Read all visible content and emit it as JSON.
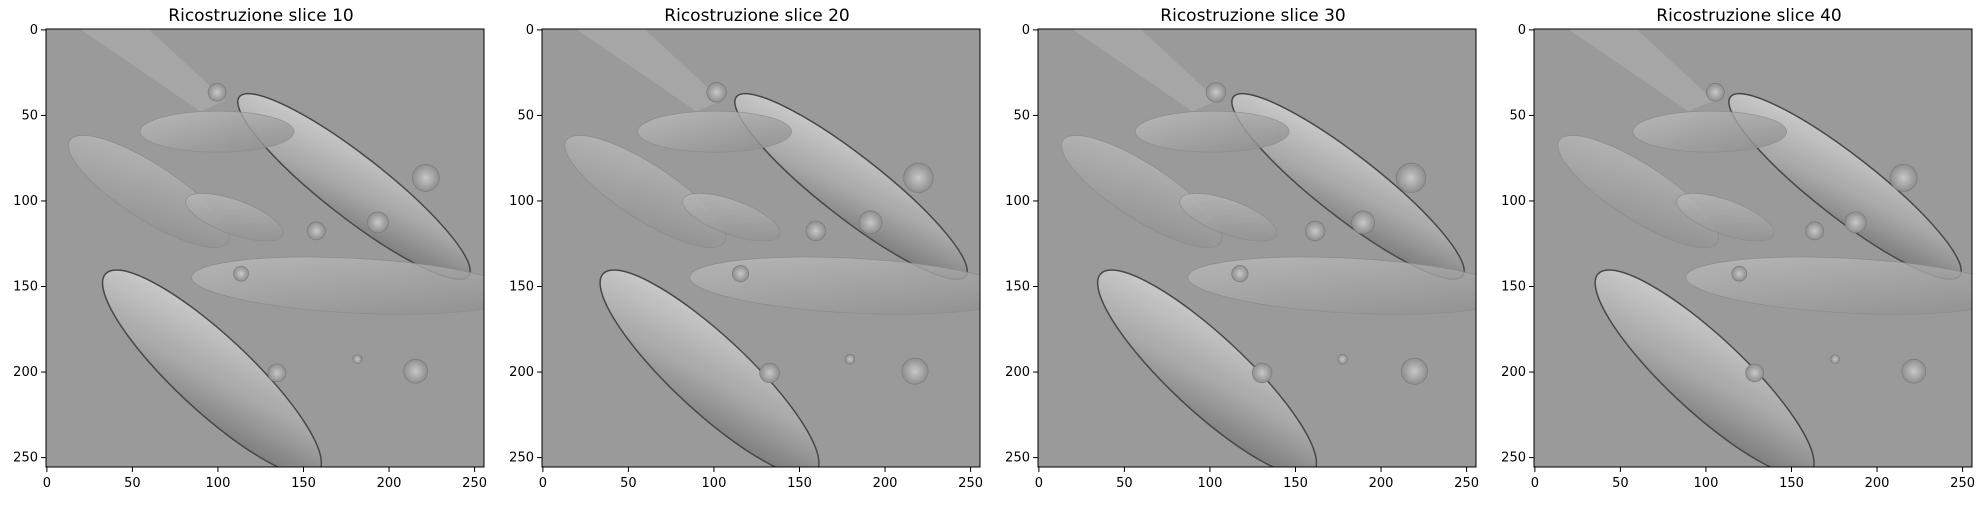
{
  "panels": [
    {
      "title": "Ricostruzione slice 10",
      "slice": 10
    },
    {
      "title": "Ricostruzione slice 20",
      "slice": 20
    },
    {
      "title": "Ricostruzione slice 30",
      "slice": 30
    },
    {
      "title": "Ricostruzione slice 40",
      "slice": 40
    }
  ],
  "axes": {
    "x_ticks": [
      "0",
      "50",
      "100",
      "150",
      "200",
      "250"
    ],
    "y_ticks": [
      "0",
      "50",
      "100",
      "150",
      "200",
      "250"
    ],
    "x_range": [
      0,
      255
    ],
    "y_range": [
      0,
      255
    ],
    "y_inverted": true
  },
  "colors": {
    "background": "#9a9a9a",
    "frame": "#000000"
  }
}
